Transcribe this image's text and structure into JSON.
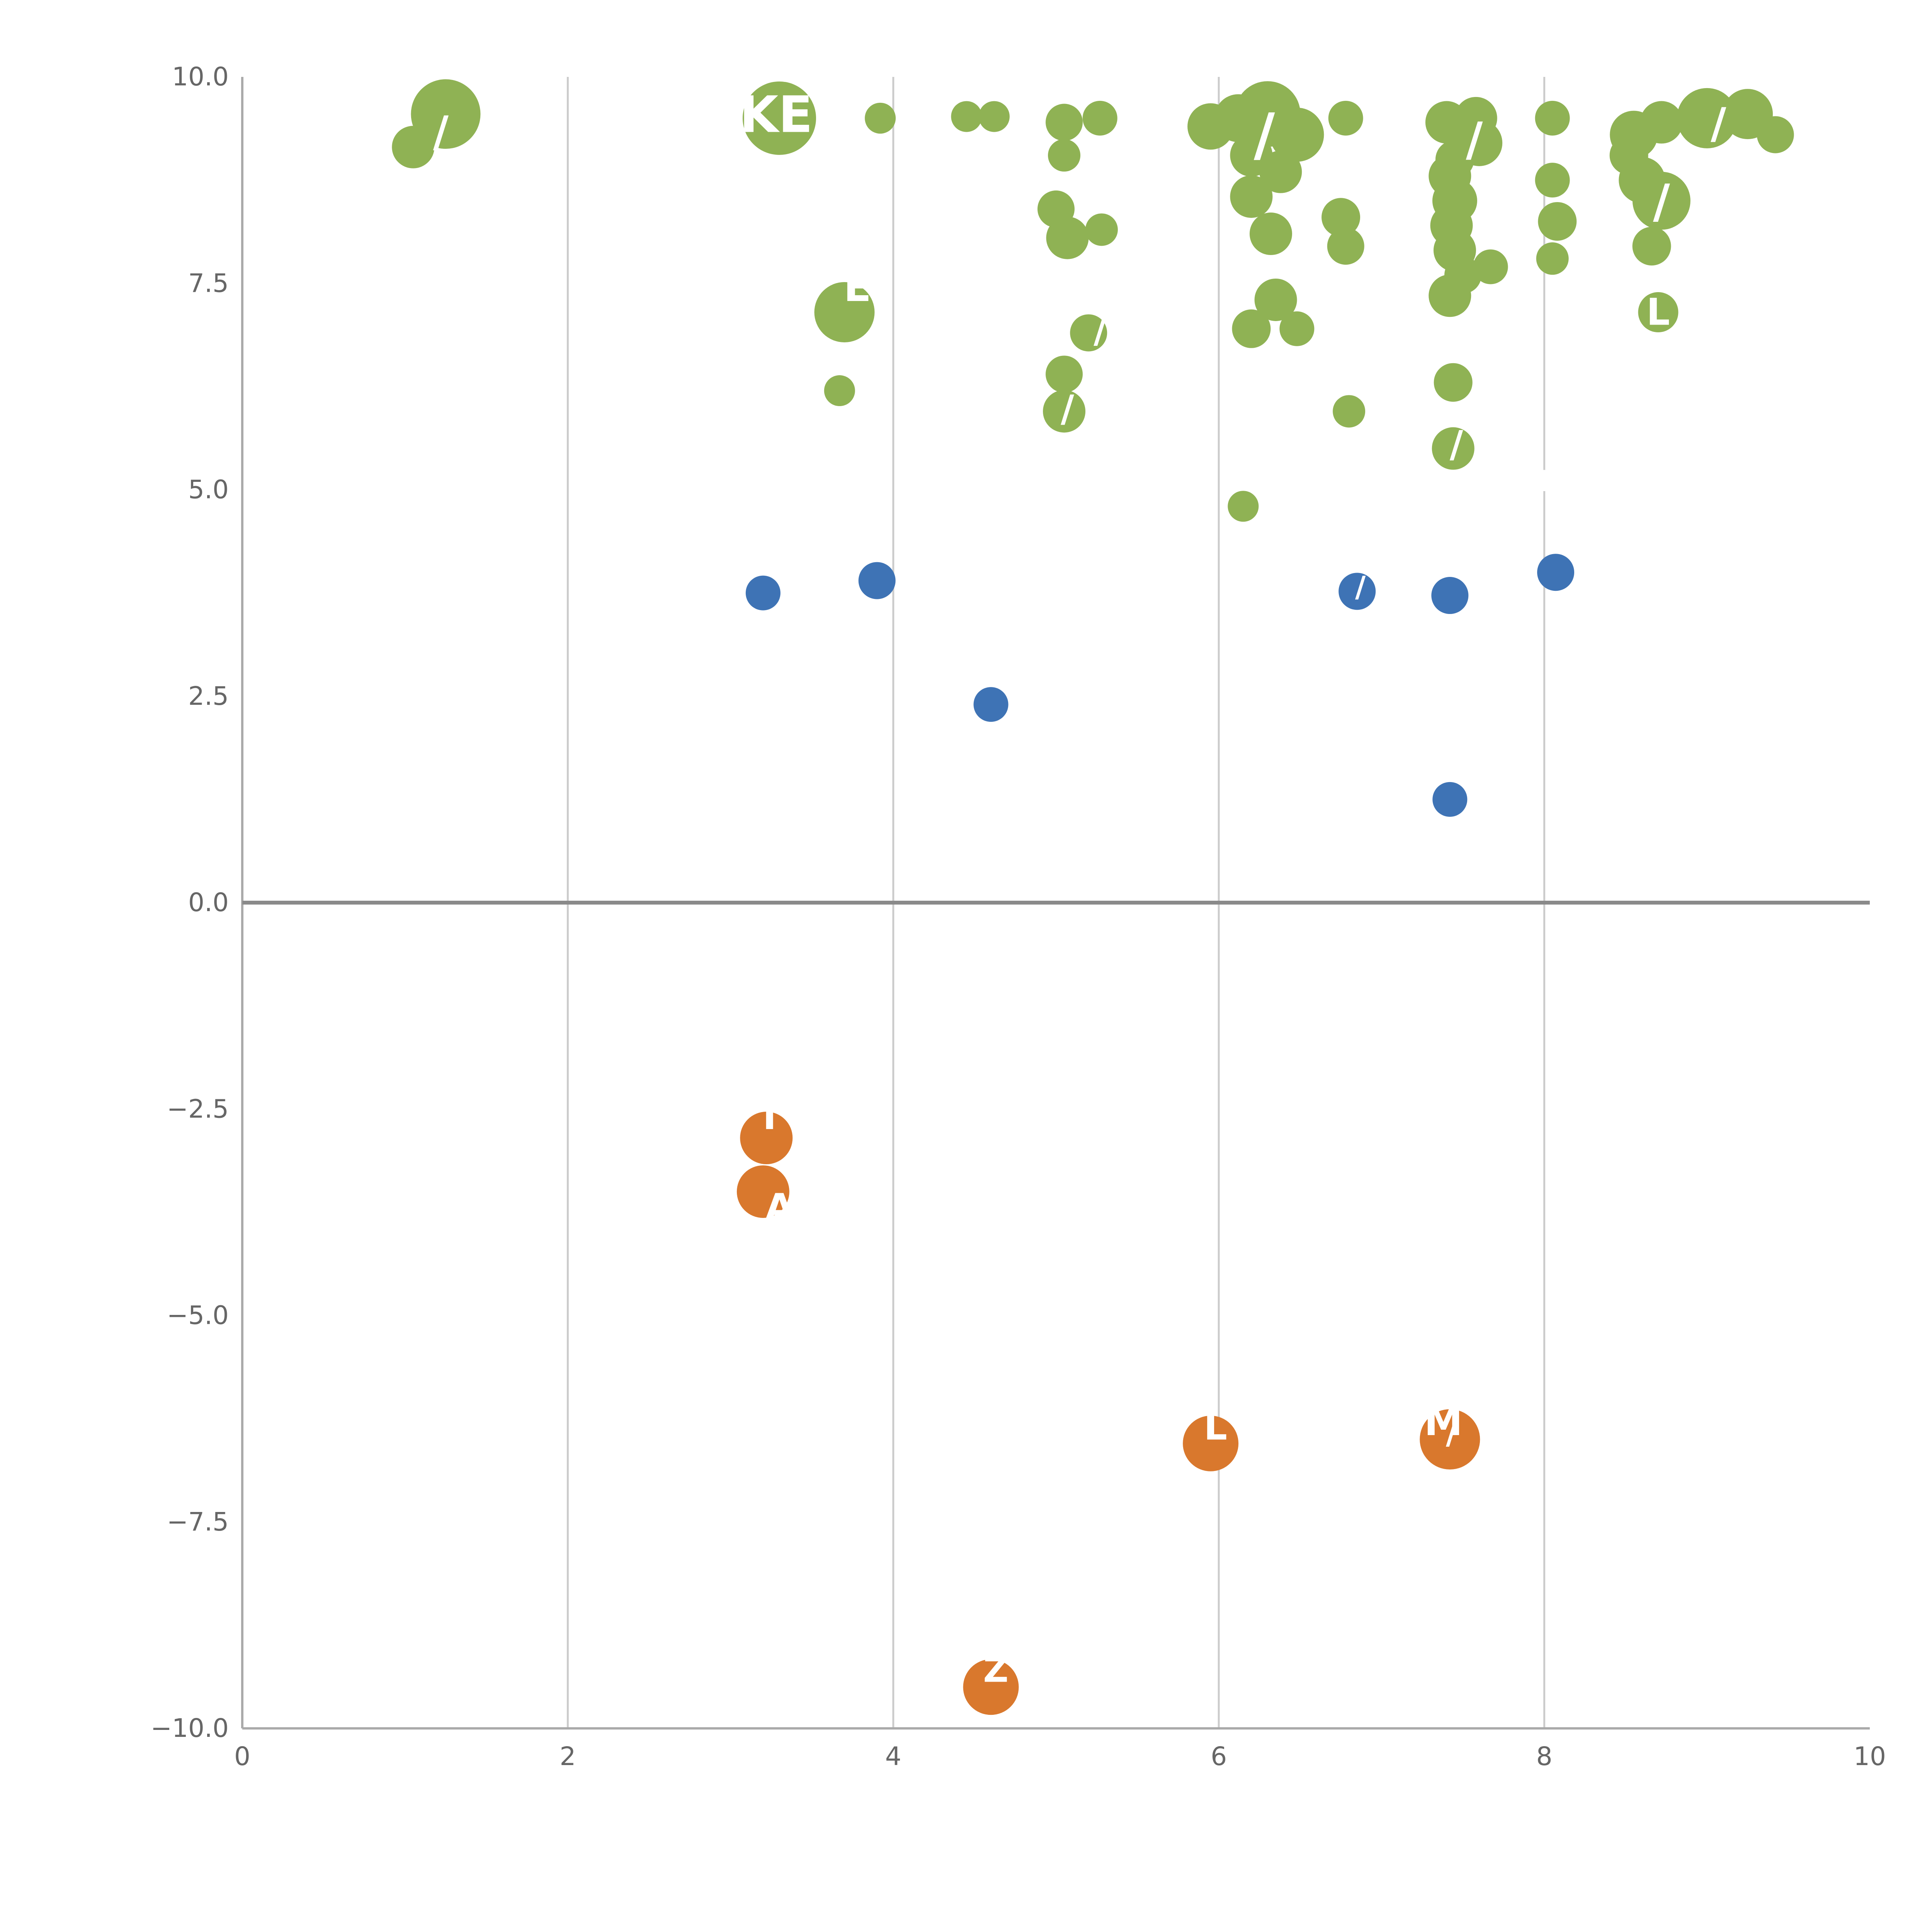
{
  "chart_data": {
    "type": "scatter",
    "title": "",
    "xlabel": "",
    "ylabel": "",
    "xlim": [
      0,
      10
    ],
    "ylim": [
      -10,
      10
    ],
    "x_tick_values": [
      0,
      2,
      4,
      6,
      8,
      10
    ],
    "x_tick_labels": [
      "0",
      "2",
      "4",
      "6",
      "8",
      "10"
    ],
    "y_tick_values": [
      10,
      7.5,
      5,
      2.5,
      0,
      -2.5,
      -5,
      -7.5,
      -10
    ],
    "y_tick_labels": [
      "10.0",
      "7.5",
      "5.0",
      "2.5",
      "0.0",
      "−2.5",
      "−5.0",
      "−7.5",
      "−10.0"
    ],
    "gridlines_x": [
      2,
      4,
      6,
      8
    ],
    "zero_line_y": 0,
    "legend_position": "none",
    "colors": {
      "green": "#8FB254",
      "blue": "#3E73B5",
      "orange": "#D9782D",
      "grid": "#cccccc",
      "spine": "#aaaaaa",
      "zero_line": "#8a8a8a",
      "tick_text": "#666666",
      "annotation_text": "#ffffff"
    },
    "series": [
      {
        "name": "green",
        "color_key": "green",
        "points": [
          [
            1.25,
            9.55,
            90
          ],
          [
            1.05,
            9.15,
            55
          ],
          [
            3.3,
            9.5,
            95
          ],
          [
            3.92,
            9.5,
            40
          ],
          [
            4.45,
            9.52,
            40
          ],
          [
            4.62,
            9.52,
            40
          ],
          [
            5.05,
            9.45,
            48
          ],
          [
            5.27,
            9.5,
            45
          ],
          [
            5.05,
            9.05,
            42
          ],
          [
            5.95,
            9.4,
            60
          ],
          [
            6.12,
            9.5,
            62
          ],
          [
            6.3,
            9.55,
            85
          ],
          [
            6.48,
            9.3,
            70
          ],
          [
            6.2,
            9.05,
            55
          ],
          [
            6.38,
            8.85,
            55
          ],
          [
            6.78,
            9.5,
            45
          ],
          [
            7.4,
            9.45,
            55
          ],
          [
            7.58,
            9.5,
            55
          ],
          [
            7.6,
            9.2,
            60
          ],
          [
            7.45,
            9.0,
            50
          ],
          [
            8.05,
            9.5,
            45
          ],
          [
            8.55,
            9.3,
            62
          ],
          [
            8.72,
            9.45,
            55
          ],
          [
            9.0,
            9.5,
            78
          ],
          [
            9.25,
            9.55,
            65
          ],
          [
            9.42,
            9.3,
            48
          ],
          [
            8.52,
            9.05,
            50
          ],
          [
            5.0,
            8.4,
            48
          ],
          [
            5.07,
            8.05,
            55
          ],
          [
            5.28,
            8.15,
            42
          ],
          [
            6.2,
            8.55,
            55
          ],
          [
            6.32,
            8.1,
            55
          ],
          [
            6.75,
            8.3,
            50
          ],
          [
            6.78,
            7.95,
            48
          ],
          [
            7.42,
            8.8,
            55
          ],
          [
            7.45,
            8.5,
            58
          ],
          [
            7.43,
            8.2,
            55
          ],
          [
            7.45,
            7.9,
            55
          ],
          [
            7.5,
            7.6,
            48
          ],
          [
            8.05,
            8.75,
            45
          ],
          [
            8.08,
            8.25,
            50
          ],
          [
            8.6,
            8.75,
            60
          ],
          [
            8.72,
            8.5,
            75
          ],
          [
            8.66,
            7.95,
            50
          ],
          [
            3.7,
            7.15,
            78
          ],
          [
            6.35,
            7.3,
            55
          ],
          [
            6.2,
            6.95,
            50
          ],
          [
            6.48,
            6.95,
            45
          ],
          [
            7.42,
            7.35,
            55
          ],
          [
            7.67,
            7.7,
            45
          ],
          [
            8.05,
            7.8,
            42
          ],
          [
            8.7,
            7.15,
            52
          ],
          [
            5.2,
            6.9,
            48
          ],
          [
            5.05,
            6.4,
            48
          ],
          [
            3.67,
            6.2,
            40
          ],
          [
            5.05,
            5.95,
            55
          ],
          [
            7.44,
            6.3,
            50
          ],
          [
            6.8,
            5.95,
            42
          ],
          [
            7.44,
            5.5,
            55
          ],
          [
            6.15,
            4.8,
            40
          ]
        ]
      },
      {
        "name": "blue",
        "color_key": "blue",
        "points": [
          [
            3.2,
            3.75,
            45
          ],
          [
            3.9,
            3.9,
            48
          ],
          [
            4.6,
            2.4,
            45
          ],
          [
            6.85,
            3.77,
            48
          ],
          [
            7.42,
            3.72,
            48
          ],
          [
            8.07,
            4.0,
            48
          ],
          [
            7.42,
            1.25,
            45
          ]
        ]
      },
      {
        "name": "orange",
        "color_key": "orange",
        "points": [
          [
            3.22,
            -2.85,
            68
          ],
          [
            3.2,
            -3.5,
            68
          ],
          [
            5.95,
            -6.55,
            72
          ],
          [
            7.42,
            -6.5,
            78
          ],
          [
            4.6,
            -9.5,
            72
          ]
        ]
      }
    ],
    "annotations": [
      {
        "text": "KE",
        "x": 3.28,
        "y": 9.5,
        "size": 130
      },
      {
        "text": "E",
        "x": 3.78,
        "y": 7.42,
        "size": 105
      },
      {
        "text": "L",
        "x": 8.7,
        "y": 7.12,
        "size": 95
      },
      {
        "text": "L",
        "x": 8.03,
        "y": 5.08,
        "size": 75
      },
      {
        "text": "I",
        "x": 3.24,
        "y": -2.62,
        "size": 95
      },
      {
        "text": "A",
        "x": 3.3,
        "y": -3.72,
        "size": 95
      },
      {
        "text": "L",
        "x": 5.98,
        "y": -6.38,
        "size": 95
      },
      {
        "text": "M",
        "x": 7.38,
        "y": -6.32,
        "size": 100
      },
      {
        "text": "■",
        "x": 7.72,
        "y": -6.28,
        "size": 95
      },
      {
        "text": "Z",
        "x": 4.63,
        "y": -9.32,
        "size": 90
      },
      {
        "text": "/",
        "x": 1.22,
        "y": 9.3,
        "size": 110
      },
      {
        "text": "/",
        "x": 6.28,
        "y": 9.25,
        "size": 150
      },
      {
        "text": "/",
        "x": 7.57,
        "y": 9.2,
        "size": 120
      },
      {
        "text": "/",
        "x": 8.72,
        "y": 8.45,
        "size": 120
      },
      {
        "text": "/",
        "x": 9.07,
        "y": 9.4,
        "size": 110
      },
      {
        "text": "/",
        "x": 5.27,
        "y": 6.9,
        "size": 90
      },
      {
        "text": "/",
        "x": 5.07,
        "y": 5.95,
        "size": 95
      },
      {
        "text": "/",
        "x": 7.46,
        "y": 5.52,
        "size": 95
      },
      {
        "text": "/",
        "x": 6.87,
        "y": 3.8,
        "size": 75
      },
      {
        "text": "/",
        "x": 7.43,
        "y": -6.45,
        "size": 80
      }
    ]
  }
}
